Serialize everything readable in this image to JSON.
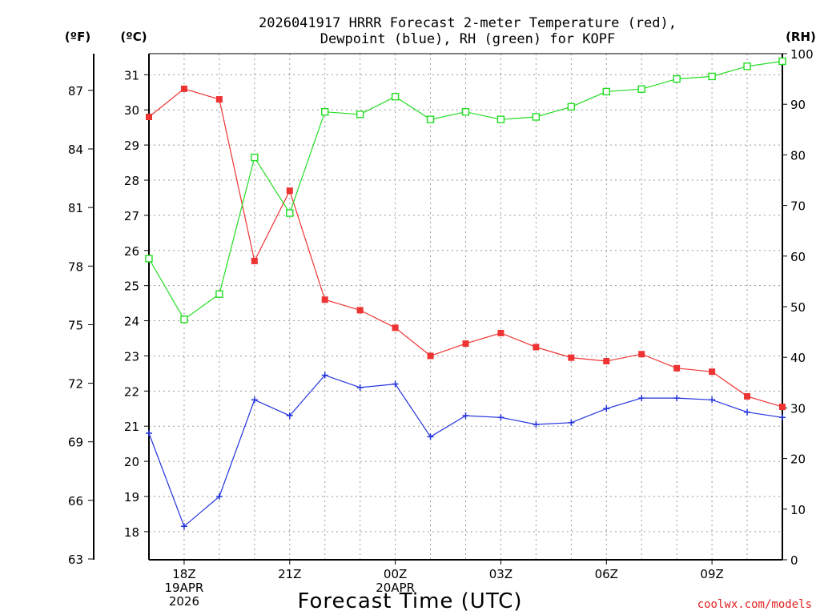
{
  "chart_data": {
    "type": "line",
    "title_line1": "2026041917 HRRR Forecast 2-meter Temperature (red),",
    "title_line2": "Dewpoint (blue), RH (green) for KOPF",
    "xlabel": "Forecast Time (UTC)",
    "credit": "coolwx.com/models",
    "units": {
      "far": "(ºF)",
      "cel": "(ºC)",
      "rh": "(RH)"
    },
    "x_ticks": [
      {
        "index": 1,
        "lines": [
          "18Z",
          "19APR",
          "2026"
        ]
      },
      {
        "index": 4,
        "lines": [
          "21Z"
        ]
      },
      {
        "index": 7,
        "lines": [
          "00Z",
          "20APR"
        ]
      },
      {
        "index": 10,
        "lines": [
          "03Z"
        ]
      },
      {
        "index": 13,
        "lines": [
          "06Z"
        ]
      },
      {
        "index": 16,
        "lines": [
          "09Z"
        ]
      }
    ],
    "celsius_ticks": [
      18,
      19,
      20,
      21,
      22,
      23,
      24,
      25,
      26,
      27,
      28,
      29,
      30,
      31
    ],
    "fahrenheit_ticks": [
      63,
      66,
      69,
      72,
      75,
      78,
      81,
      84,
      87
    ],
    "rh_ticks": [
      0,
      10,
      20,
      30,
      40,
      50,
      60,
      70,
      80,
      90,
      100
    ],
    "celsius_range": [
      17.2,
      31.6
    ],
    "rh_range": [
      0,
      100
    ],
    "x_count": 19,
    "grid": true,
    "series": [
      {
        "key": "temperature",
        "color": "#ee3333",
        "marker": "filled-square",
        "unit": "C",
        "values": [
          29.8,
          30.6,
          30.3,
          25.7,
          27.7,
          24.6,
          24.3,
          23.8,
          23.0,
          23.35,
          23.65,
          23.25,
          22.95,
          22.85,
          23.05,
          22.65,
          22.55,
          21.85,
          21.55
        ]
      },
      {
        "key": "dewpoint",
        "color": "#2233dd",
        "marker": "plus",
        "unit": "C",
        "values": [
          20.8,
          18.15,
          19.0,
          21.75,
          21.3,
          22.45,
          22.1,
          22.2,
          20.7,
          21.3,
          21.25,
          21.05,
          21.1,
          21.5,
          21.8,
          21.8,
          21.75,
          21.4,
          21.25
        ]
      },
      {
        "key": "rh",
        "color": "#22dd22",
        "marker": "open-square",
        "unit": "%",
        "values": [
          59.5,
          47.5,
          52.5,
          79.5,
          68.5,
          88.5,
          88.0,
          91.5,
          87.0,
          88.5,
          87.0,
          87.5,
          89.5,
          92.5,
          93.0,
          95.0,
          95.5,
          97.5,
          98.5
        ]
      }
    ]
  }
}
